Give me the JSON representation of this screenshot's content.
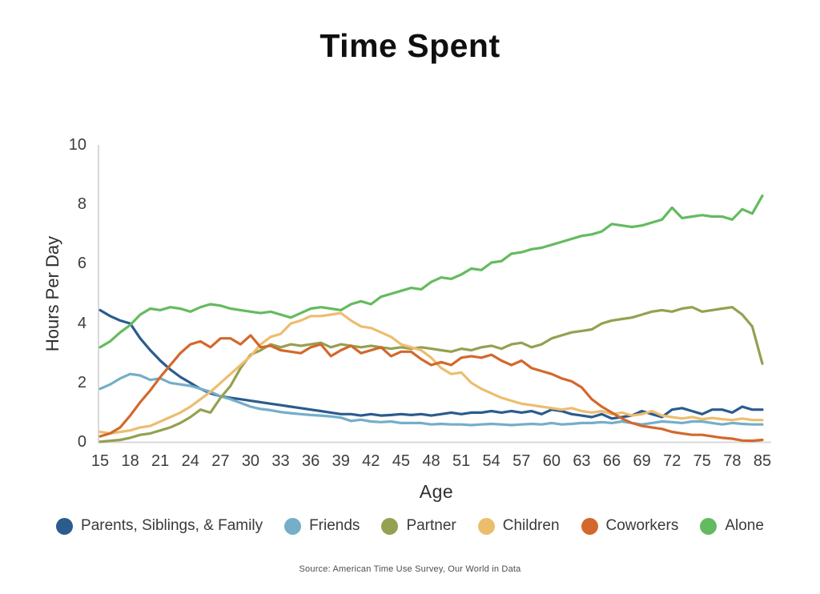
{
  "title": "Time Spent",
  "source": "Source: American Time Use Survey, Our World in Data",
  "axes": {
    "x_label": "Age",
    "y_label": "Hours Per Day",
    "y_ticks": [
      0,
      2,
      4,
      6,
      8,
      10
    ],
    "x_tick_labels": [
      "15",
      "18",
      "21",
      "24",
      "27",
      "30",
      "33",
      "36",
      "39",
      "42",
      "45",
      "48",
      "51",
      "54",
      "57",
      "60",
      "63",
      "66",
      "69",
      "72",
      "75",
      "78",
      "85"
    ],
    "x_tick_indices": [
      0,
      3,
      6,
      9,
      12,
      15,
      18,
      21,
      24,
      27,
      30,
      33,
      36,
      39,
      42,
      45,
      48,
      51,
      54,
      57,
      60,
      63,
      66
    ]
  },
  "colors": {
    "axis_line": "#d9d9d9",
    "tick_text": "#3d3d3d",
    "title_text": "#0f0f0f"
  },
  "chart_data": {
    "type": "line",
    "title": "Time Spent",
    "xlabel": "Age",
    "ylabel": "Hours Per Day",
    "ylim": [
      0,
      10
    ],
    "grid": false,
    "legend_position": "bottom",
    "x": [
      15,
      16,
      17,
      18,
      19,
      20,
      21,
      22,
      23,
      24,
      25,
      26,
      27,
      28,
      29,
      30,
      31,
      32,
      33,
      34,
      35,
      36,
      37,
      38,
      39,
      40,
      41,
      42,
      43,
      44,
      45,
      46,
      47,
      48,
      49,
      50,
      51,
      52,
      53,
      54,
      55,
      56,
      57,
      58,
      59,
      60,
      61,
      62,
      63,
      64,
      65,
      66,
      67,
      68,
      69,
      70,
      71,
      72,
      73,
      74,
      75,
      76,
      77,
      78,
      79,
      80,
      85
    ],
    "series": [
      {
        "name": "Parents, Siblings, & Family",
        "color": "#2a5c8d",
        "values": [
          4.45,
          4.25,
          4.1,
          4.0,
          3.5,
          3.1,
          2.75,
          2.45,
          2.2,
          2.0,
          1.8,
          1.65,
          1.55,
          1.5,
          1.45,
          1.4,
          1.35,
          1.3,
          1.25,
          1.2,
          1.15,
          1.1,
          1.05,
          1.0,
          0.95,
          0.95,
          0.9,
          0.95,
          0.9,
          0.92,
          0.95,
          0.92,
          0.95,
          0.9,
          0.95,
          1.0,
          0.95,
          1.0,
          1.0,
          1.05,
          1.0,
          1.05,
          1.0,
          1.05,
          0.95,
          1.1,
          1.05,
          0.95,
          0.9,
          0.85,
          0.95,
          0.8,
          0.85,
          0.9,
          1.05,
          0.95,
          0.85,
          1.1,
          1.15,
          1.05,
          0.95,
          1.1,
          1.1,
          1.0,
          1.2,
          1.1,
          1.1
        ]
      },
      {
        "name": "Friends",
        "color": "#74aec9",
        "values": [
          1.8,
          1.95,
          2.15,
          2.3,
          2.25,
          2.1,
          2.15,
          2.0,
          1.95,
          1.9,
          1.8,
          1.7,
          1.55,
          1.45,
          1.33,
          1.2,
          1.12,
          1.08,
          1.02,
          0.98,
          0.95,
          0.92,
          0.9,
          0.87,
          0.83,
          0.72,
          0.76,
          0.7,
          0.68,
          0.7,
          0.65,
          0.65,
          0.65,
          0.6,
          0.62,
          0.6,
          0.6,
          0.58,
          0.6,
          0.62,
          0.6,
          0.58,
          0.6,
          0.62,
          0.6,
          0.65,
          0.6,
          0.62,
          0.65,
          0.65,
          0.68,
          0.65,
          0.7,
          0.65,
          0.6,
          0.65,
          0.7,
          0.68,
          0.65,
          0.7,
          0.7,
          0.65,
          0.6,
          0.65,
          0.62,
          0.6,
          0.6
        ]
      },
      {
        "name": "Partner",
        "color": "#95a050",
        "values": [
          0.02,
          0.05,
          0.08,
          0.15,
          0.25,
          0.3,
          0.4,
          0.5,
          0.65,
          0.85,
          1.1,
          1.0,
          1.5,
          1.9,
          2.5,
          2.95,
          3.1,
          3.3,
          3.2,
          3.3,
          3.25,
          3.3,
          3.35,
          3.2,
          3.3,
          3.25,
          3.2,
          3.25,
          3.2,
          3.15,
          3.2,
          3.15,
          3.2,
          3.15,
          3.1,
          3.05,
          3.15,
          3.1,
          3.2,
          3.25,
          3.15,
          3.3,
          3.35,
          3.2,
          3.3,
          3.5,
          3.6,
          3.7,
          3.75,
          3.8,
          4.0,
          4.1,
          4.15,
          4.2,
          4.3,
          4.4,
          4.45,
          4.4,
          4.5,
          4.55,
          4.4,
          4.45,
          4.5,
          4.55,
          4.3,
          3.9,
          2.65
        ]
      },
      {
        "name": "Children",
        "color": "#edbd6e",
        "values": [
          0.35,
          0.3,
          0.35,
          0.4,
          0.5,
          0.55,
          0.7,
          0.85,
          1.0,
          1.2,
          1.45,
          1.7,
          2.0,
          2.3,
          2.6,
          2.9,
          3.3,
          3.55,
          3.65,
          4.0,
          4.1,
          4.25,
          4.25,
          4.3,
          4.35,
          4.1,
          3.9,
          3.85,
          3.7,
          3.55,
          3.3,
          3.2,
          3.1,
          2.85,
          2.5,
          2.3,
          2.35,
          2.0,
          1.8,
          1.65,
          1.5,
          1.4,
          1.3,
          1.25,
          1.2,
          1.15,
          1.1,
          1.15,
          1.05,
          1.0,
          1.05,
          0.95,
          1.0,
          0.9,
          0.95,
          1.05,
          0.9,
          0.85,
          0.8,
          0.85,
          0.78,
          0.82,
          0.78,
          0.75,
          0.8,
          0.75,
          0.75
        ]
      },
      {
        "name": "Coworkers",
        "color": "#d3682c",
        "values": [
          0.2,
          0.3,
          0.5,
          0.9,
          1.35,
          1.75,
          2.2,
          2.6,
          3.0,
          3.3,
          3.4,
          3.2,
          3.5,
          3.5,
          3.3,
          3.6,
          3.2,
          3.25,
          3.1,
          3.05,
          3.0,
          3.2,
          3.3,
          2.9,
          3.1,
          3.25,
          3.0,
          3.1,
          3.2,
          2.9,
          3.05,
          3.05,
          2.8,
          2.6,
          2.7,
          2.6,
          2.85,
          2.9,
          2.85,
          2.95,
          2.75,
          2.6,
          2.75,
          2.5,
          2.4,
          2.3,
          2.15,
          2.05,
          1.85,
          1.45,
          1.2,
          1.0,
          0.8,
          0.65,
          0.55,
          0.5,
          0.45,
          0.35,
          0.3,
          0.25,
          0.25,
          0.2,
          0.15,
          0.12,
          0.06,
          0.05,
          0.08
        ]
      },
      {
        "name": "Alone",
        "color": "#64bb5f",
        "values": [
          3.2,
          3.4,
          3.7,
          3.95,
          4.3,
          4.5,
          4.45,
          4.55,
          4.5,
          4.4,
          4.55,
          4.65,
          4.6,
          4.5,
          4.45,
          4.4,
          4.35,
          4.4,
          4.3,
          4.2,
          4.35,
          4.5,
          4.55,
          4.5,
          4.45,
          4.65,
          4.75,
          4.65,
          4.9,
          5.0,
          5.1,
          5.2,
          5.15,
          5.4,
          5.55,
          5.5,
          5.65,
          5.85,
          5.8,
          6.05,
          6.1,
          6.35,
          6.4,
          6.5,
          6.55,
          6.65,
          6.75,
          6.85,
          6.95,
          7.0,
          7.1,
          7.35,
          7.3,
          7.25,
          7.3,
          7.4,
          7.5,
          7.9,
          7.55,
          7.6,
          7.65,
          7.6,
          7.6,
          7.5,
          7.85,
          7.7,
          8.3
        ]
      }
    ]
  }
}
